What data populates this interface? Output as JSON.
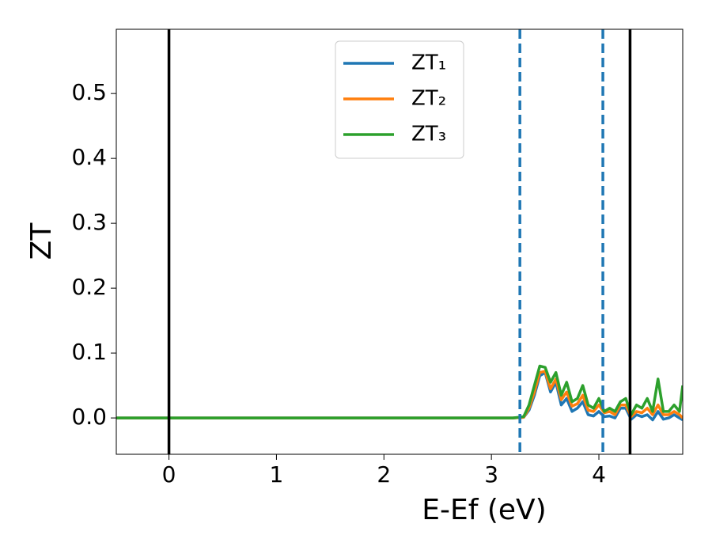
{
  "chart_data": {
    "type": "line",
    "xlabel": "E-Ef (eV)",
    "ylabel": "ZT",
    "x": [
      -0.49,
      3.2,
      3.3,
      3.35,
      3.4,
      3.45,
      3.5,
      3.55,
      3.6,
      3.65,
      3.7,
      3.75,
      3.8,
      3.85,
      3.9,
      3.95,
      4.0,
      4.05,
      4.1,
      4.15,
      4.2,
      4.25,
      4.3,
      4.35,
      4.4,
      4.45,
      4.5,
      4.55,
      4.6,
      4.65,
      4.7,
      4.75,
      4.78
    ],
    "series": [
      {
        "name": "ZT₁",
        "color": "#1f77b4",
        "values": [
          0,
          0,
          0.001,
          0.012,
          0.035,
          0.065,
          0.07,
          0.04,
          0.055,
          0.02,
          0.03,
          0.01,
          0.015,
          0.025,
          0.005,
          0.003,
          0.01,
          0.002,
          0.003,
          0,
          0.015,
          0.015,
          -0.002,
          0.005,
          0.002,
          0.005,
          -0.003,
          0.01,
          -0.002,
          0,
          0.005,
          0,
          -0.003
        ]
      },
      {
        "name": "ZT₂",
        "color": "#ff7f0e",
        "values": [
          0,
          0,
          0.001,
          0.015,
          0.04,
          0.07,
          0.072,
          0.045,
          0.06,
          0.028,
          0.04,
          0.018,
          0.022,
          0.035,
          0.012,
          0.01,
          0.02,
          0.008,
          0.01,
          0.005,
          0.02,
          0.02,
          0.002,
          0.01,
          0.008,
          0.015,
          0.005,
          0.02,
          0.005,
          0.005,
          0.01,
          0.005,
          0
        ]
      },
      {
        "name": "ZT₃",
        "color": "#2ca02c",
        "values": [
          0,
          0,
          0.002,
          0.02,
          0.05,
          0.08,
          0.078,
          0.055,
          0.07,
          0.035,
          0.055,
          0.025,
          0.03,
          0.05,
          0.02,
          0.015,
          0.03,
          0.01,
          0.015,
          0.01,
          0.025,
          0.03,
          0.005,
          0.02,
          0.015,
          0.03,
          0.01,
          0.06,
          0.01,
          0.01,
          0.02,
          0.01,
          0.05
        ]
      }
    ],
    "vlines": [
      {
        "x": 0,
        "color": "#000000",
        "style": "solid"
      },
      {
        "x": 4.29,
        "color": "#000000",
        "style": "solid"
      },
      {
        "x": 3.265,
        "color": "#1f77b4",
        "style": "dashed"
      },
      {
        "x": 4.037,
        "color": "#1f77b4",
        "style": "dashed"
      }
    ],
    "xlim": [
      -0.49,
      4.78
    ],
    "ylim": [
      -0.056,
      0.599
    ],
    "xticks": [
      0,
      1,
      2,
      3,
      4
    ],
    "yticks": [
      {
        "value": 0,
        "label": "0.0"
      },
      0.1,
      0.2,
      0.3,
      0.4,
      0.5
    ],
    "grid": false,
    "legend": "upper center"
  }
}
